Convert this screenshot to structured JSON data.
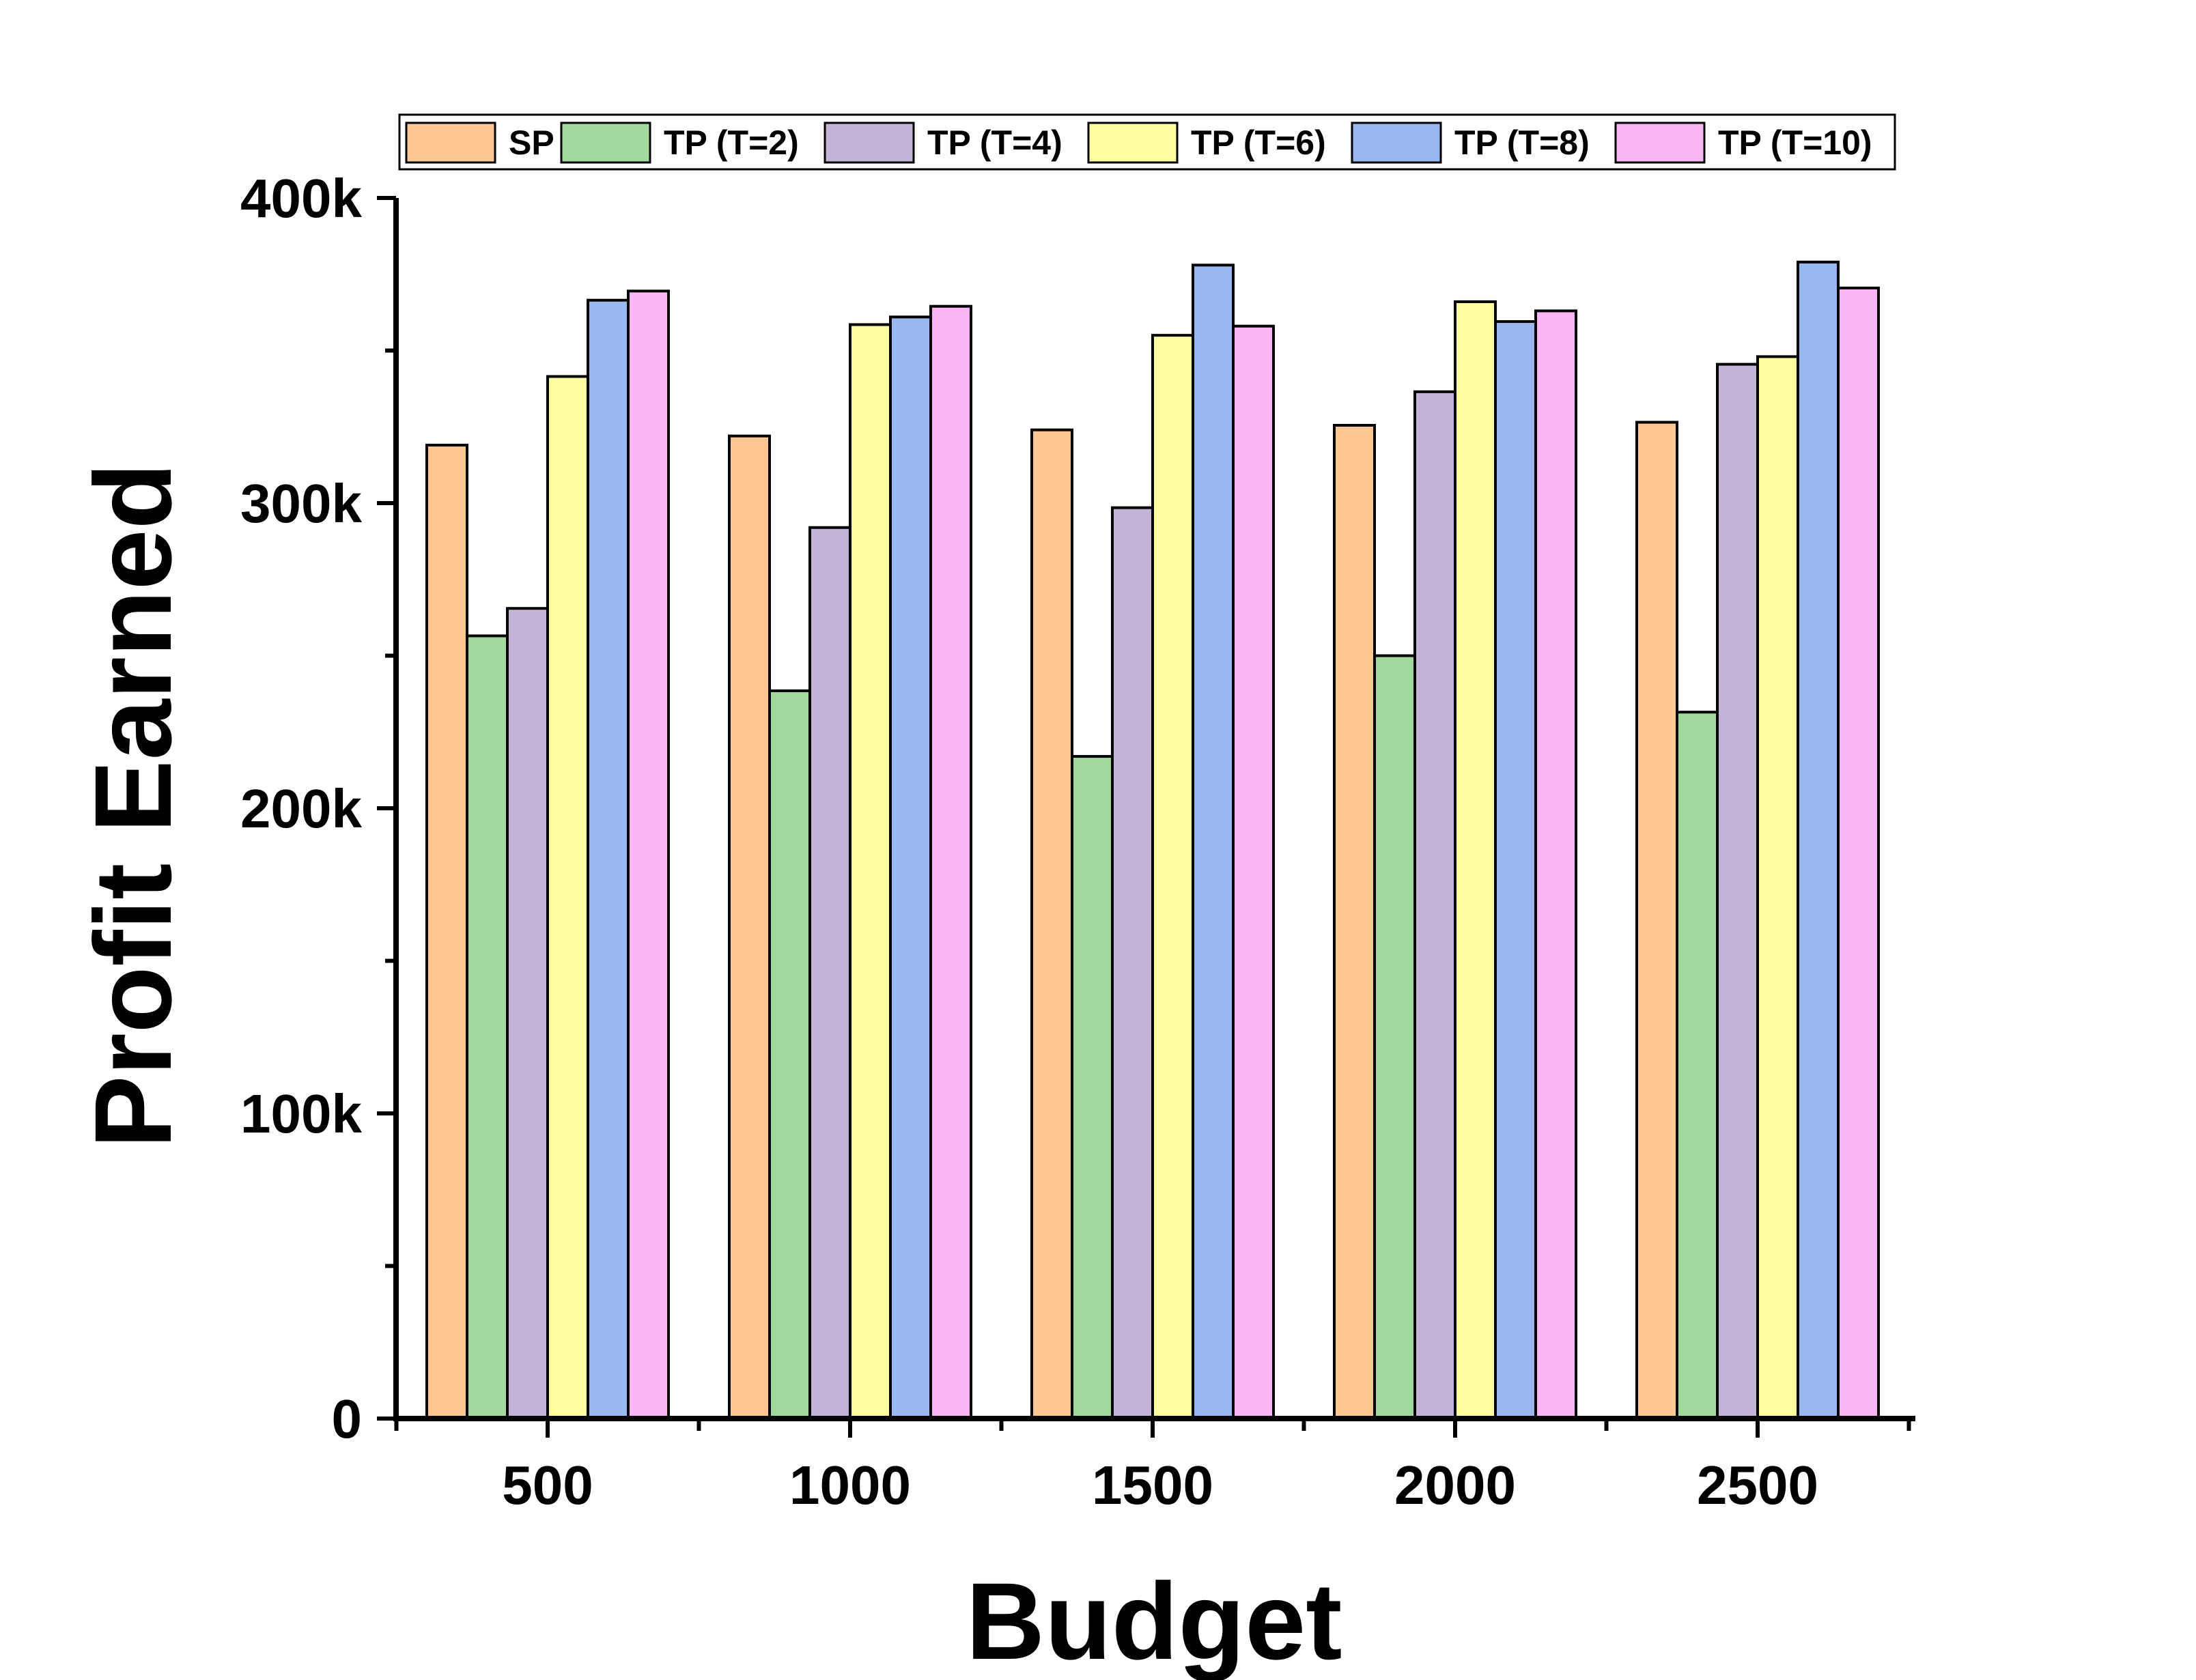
{
  "chart_data": {
    "type": "bar",
    "title": "",
    "xlabel": "Budget",
    "ylabel": "Profit Earned",
    "categories": [
      "500",
      "1000",
      "1500",
      "2000",
      "2500"
    ],
    "ylim": [
      0,
      400000
    ],
    "yticks": [
      {
        "value": 0,
        "label": "0"
      },
      {
        "value": 100000,
        "label": "100k"
      },
      {
        "value": 200000,
        "label": "200k"
      },
      {
        "value": 300000,
        "label": "300k"
      },
      {
        "value": 400000,
        "label": "400k"
      }
    ],
    "grid": false,
    "legend_position": "top",
    "series": [
      {
        "name": "SP",
        "color": "#FDC793",
        "values": [
          319000,
          322000,
          324000,
          325500,
          326500
        ]
      },
      {
        "name": "TP (T=2)",
        "color": "#A0D99B",
        "values": [
          256500,
          238500,
          217000,
          250000,
          231500
        ]
      },
      {
        "name": "TP (T=4)",
        "color": "#C3B4D7",
        "values": [
          265500,
          292000,
          298500,
          336500,
          345500
        ]
      },
      {
        "name": "TP (T=6)",
        "color": "#FFFE9F",
        "values": [
          341500,
          358500,
          355000,
          366000,
          348000
        ]
      },
      {
        "name": "TP (T=8)",
        "color": "#99B8F2",
        "values": [
          366500,
          361000,
          378000,
          359500,
          379000
        ]
      },
      {
        "name": "TP (T=10)",
        "color": "#FCB5F4",
        "values": [
          369500,
          364500,
          358000,
          363000,
          370500
        ]
      }
    ]
  }
}
